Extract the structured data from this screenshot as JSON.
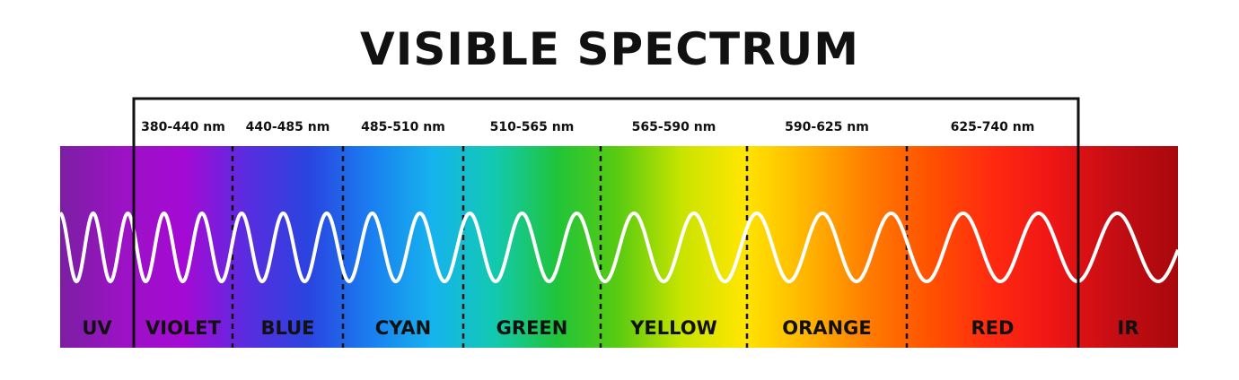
{
  "title": "VISIBLE SPECTRUM",
  "ranges": [
    "380-440 nm",
    "440-485 nm",
    "485-510 nm",
    "510-565 nm",
    "565-590 nm",
    "590-625 nm",
    "625-740 nm"
  ],
  "bands": [
    {
      "label": "UV",
      "color": "#8a1ea8"
    },
    {
      "label": "VIOLET",
      "color": "#a310cf"
    },
    {
      "label": "BLUE",
      "color": "#3a3ae6"
    },
    {
      "label": "CYAN",
      "color": "#1aa6f0"
    },
    {
      "label": "GREEN",
      "color": "#1fbf2a"
    },
    {
      "label": "YELLOW",
      "color": "#ffe600"
    },
    {
      "label": "ORANGE",
      "color": "#ff6a00"
    },
    {
      "label": "RED",
      "color": "#f21b1b"
    },
    {
      "label": "IR",
      "color": "#c20812"
    }
  ],
  "gradient_stops": [
    "#7b1fa2",
    "#9c12c4",
    "#a40ad4",
    "#5a2ce0",
    "#2a44e0",
    "#1a7ef0",
    "#16b3ee",
    "#12c9b0",
    "#20c43a",
    "#5acb10",
    "#c8e400",
    "#ffe600",
    "#ffb600",
    "#ff7d00",
    "#ff5200",
    "#ff2a10",
    "#ee1515",
    "#c40d14",
    "#a8080c"
  ]
}
